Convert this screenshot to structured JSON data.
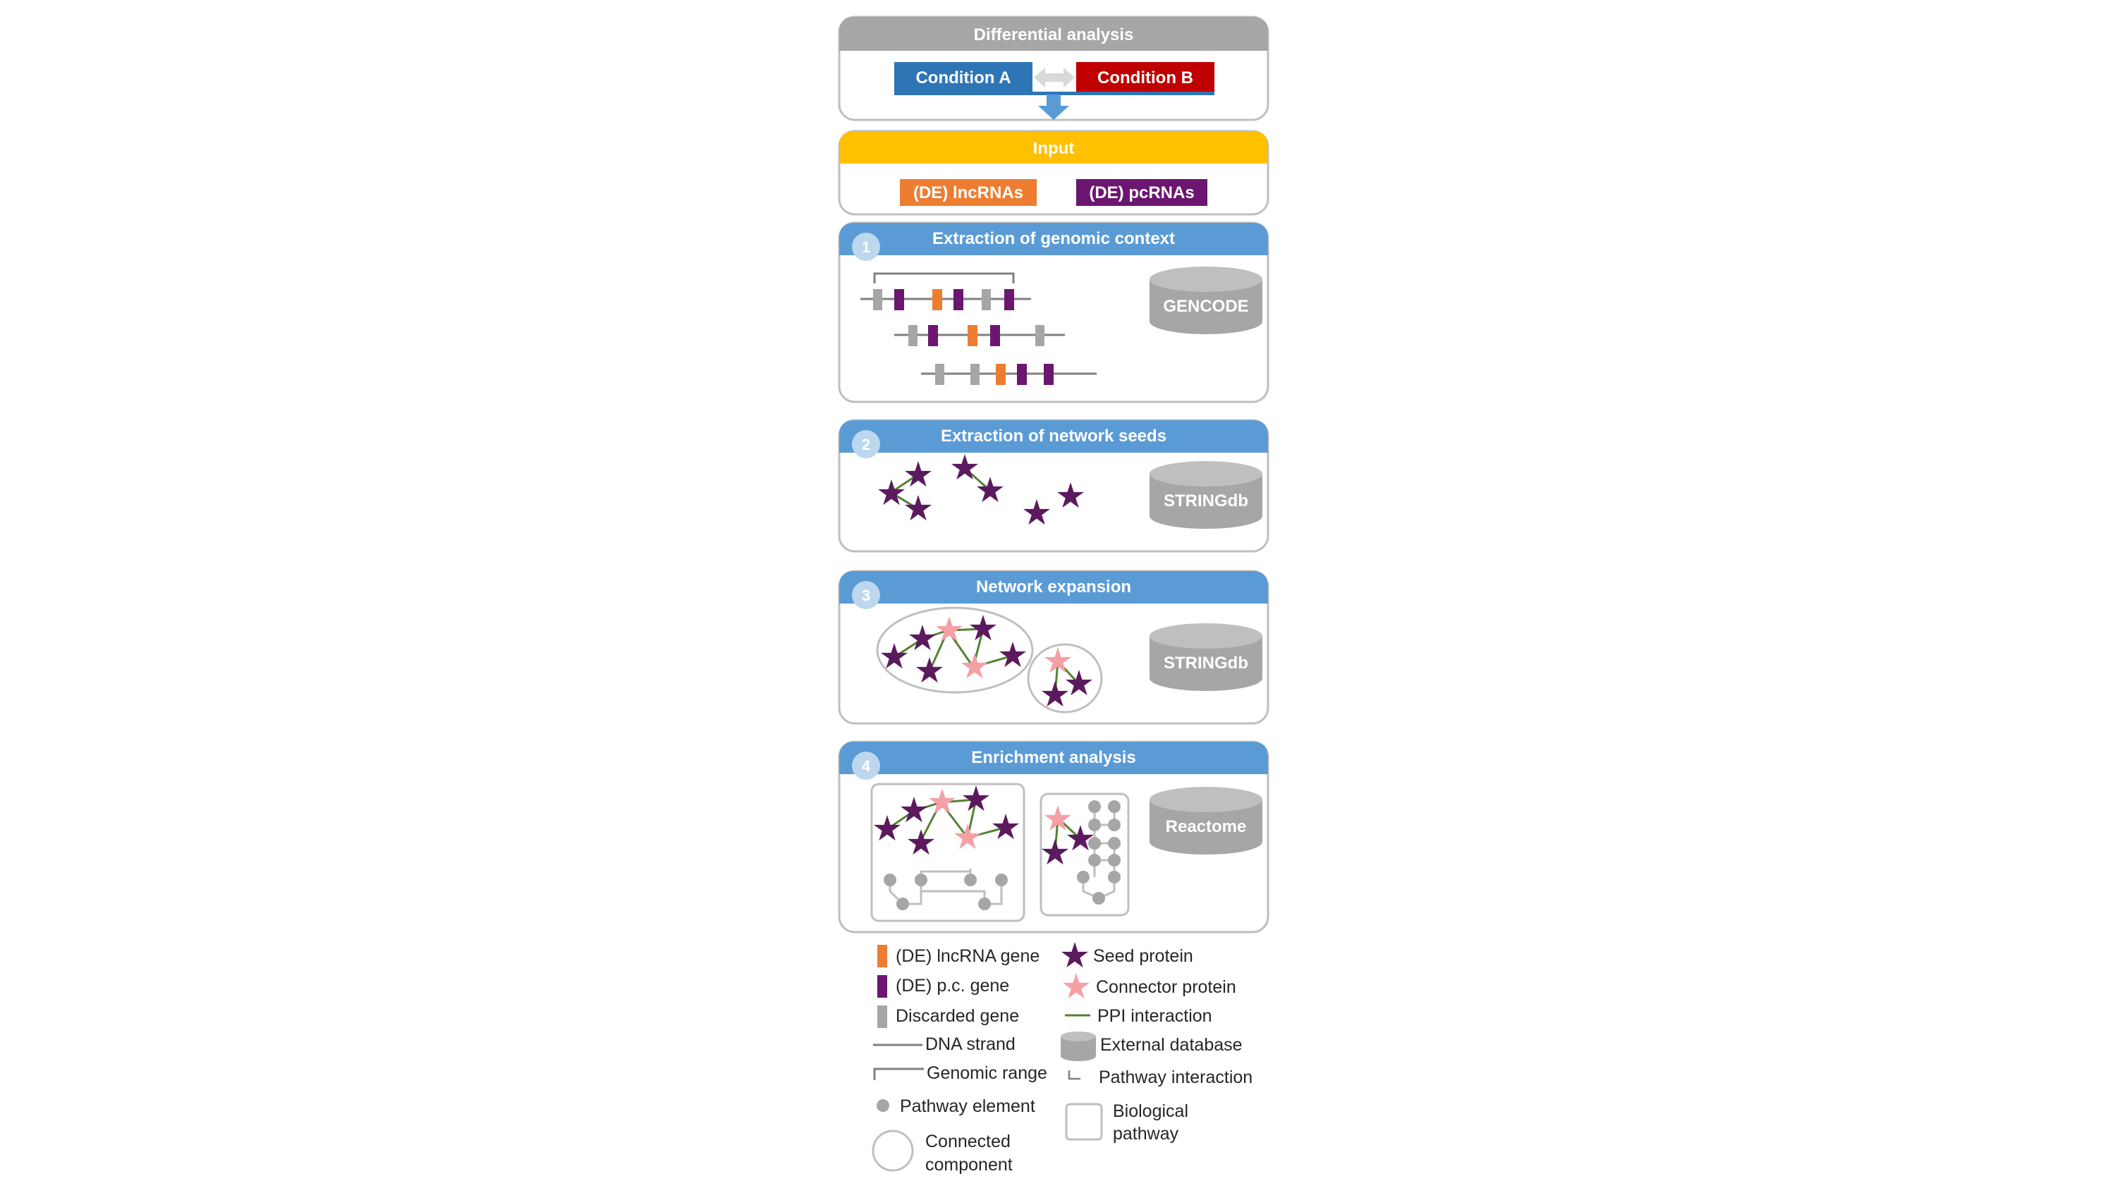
{
  "diff": {
    "title": "Differential analysis",
    "condition_a": "Condition A",
    "condition_b": "Condition B"
  },
  "input": {
    "title": "Input",
    "lnc": "(DE) lncRNAs",
    "pc": "(DE) pcRNAs"
  },
  "steps": [
    {
      "num": "1",
      "title": "Extraction of genomic context",
      "db": "GENCODE"
    },
    {
      "num": "2",
      "title": "Extraction of network seeds",
      "db": "STRINGdb"
    },
    {
      "num": "3",
      "title": "Network expansion",
      "db": "STRINGdb"
    },
    {
      "num": "4",
      "title": "Enrichment analysis",
      "db": "Reactome"
    }
  ],
  "legend": {
    "lnc_gene": "(DE) lncRNA gene",
    "pc_gene": "(DE) p.c. gene",
    "discarded": "Discarded gene",
    "dna": "DNA strand",
    "range": "Genomic range",
    "pathway_element": "Pathway element",
    "connected_line1": "Connected",
    "connected_line2": "component",
    "seed": "Seed protein",
    "connector": "Connector protein",
    "ppi": "PPI interaction",
    "external_db": "External database",
    "pathway_interaction": "Pathway interaction",
    "bio_line1": "Biological",
    "bio_line2": "pathway"
  },
  "colors": {
    "grey_header": "#a6a6a6",
    "blue_header": "#5b9bd5",
    "yellow_header": "#ffc000",
    "condition_a": "#2e75b6",
    "condition_b": "#c00000",
    "lncRNA": "#ed7d31",
    "pcRNA": "#6b1670",
    "discarded": "#a6a6a6",
    "seed_star": "#5c1a5e",
    "connector_star": "#f4a0a5",
    "ppi": "#548235",
    "database": "#a6a6a6"
  }
}
